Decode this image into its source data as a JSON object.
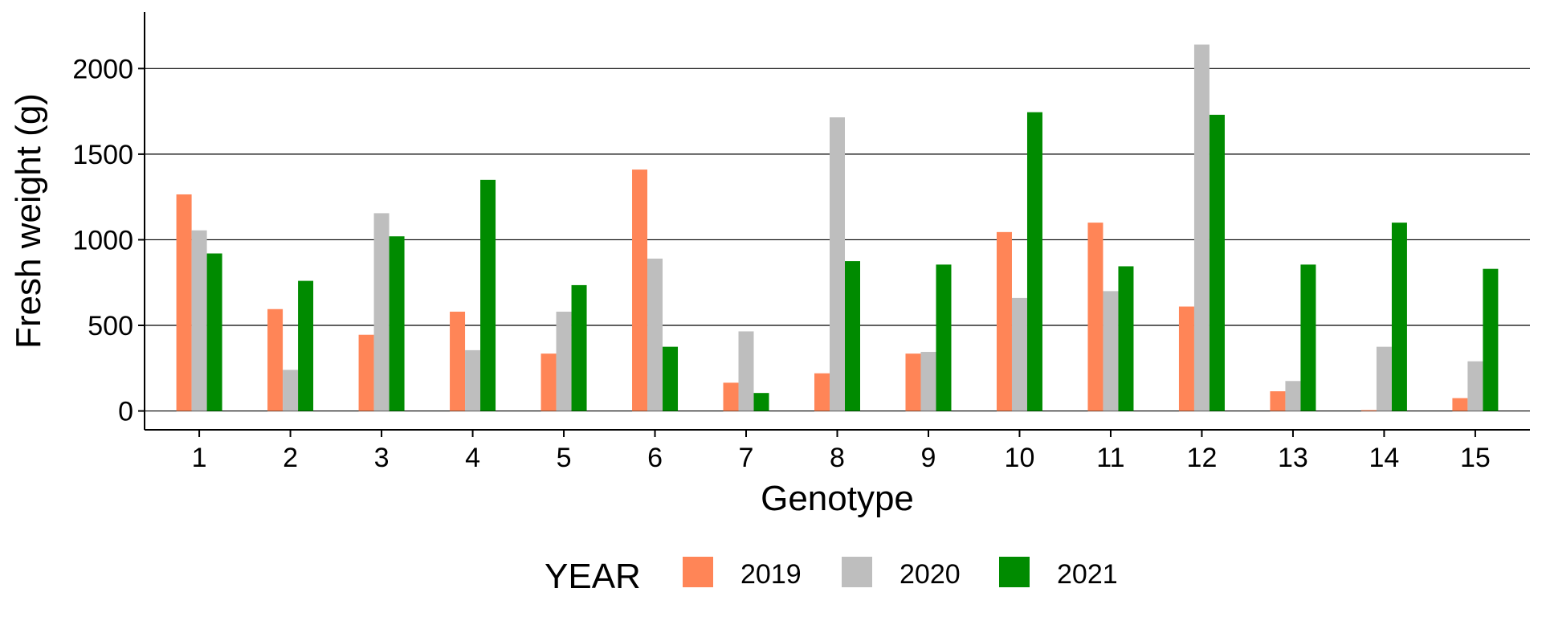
{
  "chart_data": {
    "type": "bar",
    "title": "",
    "xlabel": "Genotype",
    "ylabel": "Fresh weight (g)",
    "ylim": [
      -110,
      2330
    ],
    "yticks": [
      0,
      500,
      1000,
      1500,
      2000
    ],
    "grid": "horizontal",
    "legend_position": "bottom",
    "legend_title": "YEAR",
    "categories": [
      "1",
      "2",
      "3",
      "4",
      "5",
      "6",
      "7",
      "8",
      "9",
      "10",
      "11",
      "12",
      "13",
      "14",
      "15"
    ],
    "series": [
      {
        "name": "2019",
        "color": "#FF8557",
        "values": [
          1265,
          595,
          445,
          580,
          335,
          1410,
          165,
          220,
          335,
          1045,
          1100,
          610,
          115,
          5,
          75
        ]
      },
      {
        "name": "2020",
        "color": "#BEBEBE",
        "values": [
          1055,
          240,
          1155,
          355,
          580,
          890,
          465,
          1715,
          345,
          660,
          700,
          2140,
          175,
          375,
          290
        ]
      },
      {
        "name": "2021",
        "color": "#008B00",
        "values": [
          920,
          760,
          1020,
          1350,
          735,
          375,
          105,
          875,
          855,
          1745,
          845,
          1730,
          855,
          1100,
          830
        ]
      }
    ]
  }
}
